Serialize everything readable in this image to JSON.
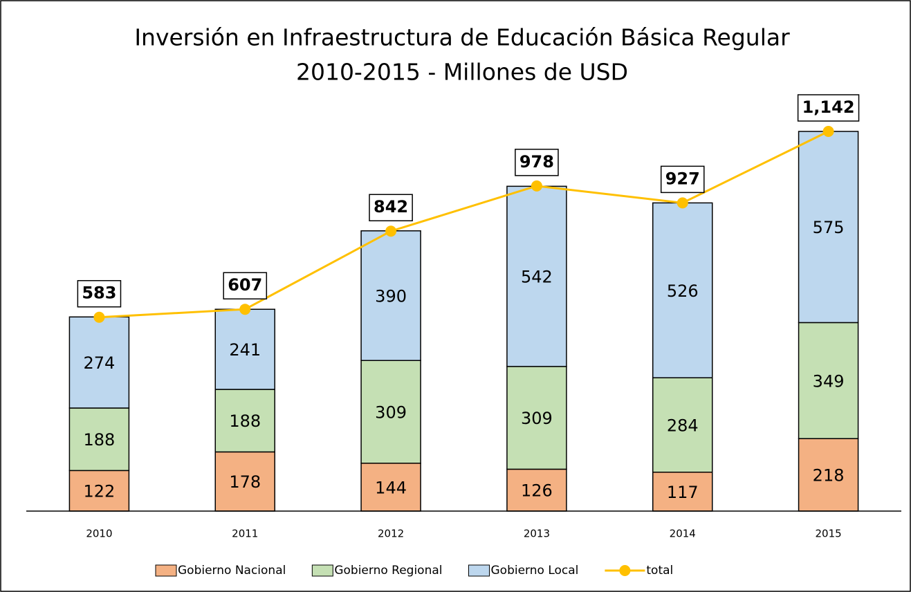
{
  "chart_data": {
    "type": "stacked_bar_line",
    "title": [
      "Inversión en Infraestructura de Educación Básica Regular",
      "2010-2015 - Millones de USD"
    ],
    "categories": [
      "2010",
      "2011",
      "2012",
      "2013",
      "2014",
      "2015"
    ],
    "series": [
      {
        "name": "Gobierno Nacional",
        "color": "#f4b183",
        "values": [
          122,
          178,
          144,
          126,
          117,
          218
        ]
      },
      {
        "name": "Gobierno Regional",
        "color": "#c5e0b4",
        "values": [
          188,
          188,
          309,
          309,
          284,
          349
        ]
      },
      {
        "name": "Gobierno Local",
        "color": "#bdd7ee",
        "values": [
          274,
          241,
          390,
          542,
          526,
          575
        ]
      },
      {
        "name": "total",
        "type": "line",
        "color": "#ffc000",
        "values": [
          583,
          607,
          842,
          978,
          927,
          1142
        ],
        "value_labels": [
          "583",
          "607",
          "842",
          "978",
          "927",
          "1,142"
        ]
      }
    ],
    "ylim": [
      0,
      1400
    ]
  }
}
